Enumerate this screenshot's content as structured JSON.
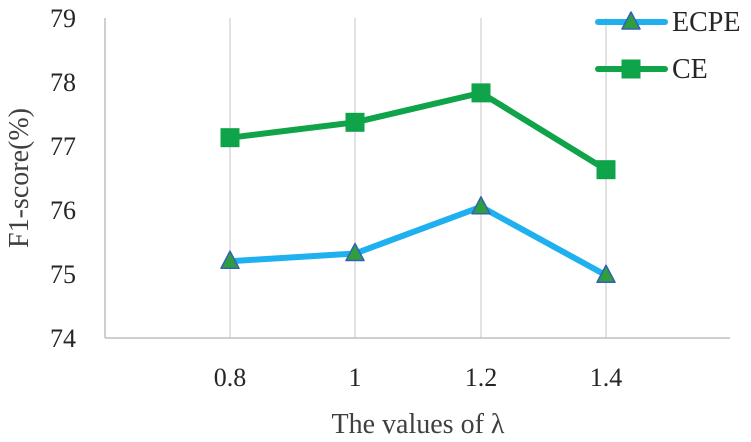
{
  "chart_data": {
    "type": "line",
    "title": "",
    "xlabel": "The values of λ",
    "ylabel": "F1-score(%)",
    "categories": [
      "0.8",
      "1",
      "1.2",
      "1.4"
    ],
    "ylim": [
      74,
      79
    ],
    "yticks": [
      "74",
      "75",
      "76",
      "77",
      "78",
      "79"
    ],
    "grid": "vertical",
    "legend_position": "top-right",
    "series": [
      {
        "name": "ECPE",
        "values": [
          75.2,
          75.32,
          76.05,
          74.98
        ],
        "color": "#1FB0F0",
        "marker": "triangle",
        "marker_fill": "#2E9E3F",
        "marker_stroke": "#3560B8"
      },
      {
        "name": "CE",
        "values": [
          77.13,
          77.37,
          77.83,
          76.63
        ],
        "color": "#0FA34A",
        "marker": "square",
        "marker_fill": "#0FA34A",
        "marker_stroke": "#0FA34A"
      }
    ]
  }
}
